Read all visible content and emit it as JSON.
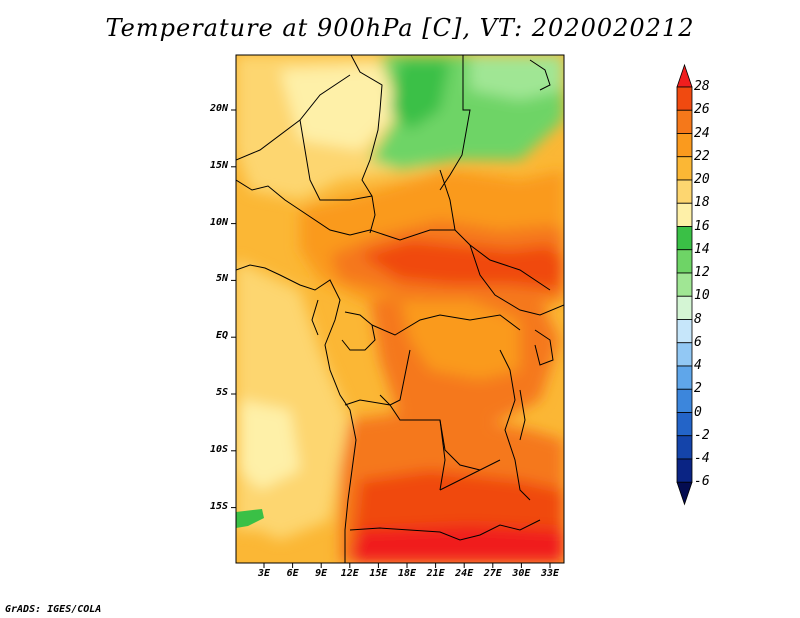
{
  "title": "Temperature at 900hPa [C], VT: 2020020212",
  "credit": "GrADS: IGES/COLA",
  "map": {
    "lat_ticks": [
      "20N",
      "15N",
      "10N",
      "5N",
      "EQ",
      "5S",
      "10S",
      "15S"
    ],
    "lon_ticks": [
      "3E",
      "6E",
      "9E",
      "12E",
      "15E",
      "18E",
      "21E",
      "24E",
      "27E",
      "30E",
      "33E"
    ]
  },
  "colorbar": {
    "labels": [
      "28",
      "26",
      "24",
      "22",
      "20",
      "18",
      "16",
      "14",
      "12",
      "10",
      "8",
      "6",
      "4",
      "2",
      "0",
      "-2",
      "-4",
      "-6"
    ],
    "colors": [
      "#f01e1e",
      "#f04a10",
      "#f5781a",
      "#fa9a1e",
      "#fbb735",
      "#fdd670",
      "#fef0a8",
      "#3ac046",
      "#6ed466",
      "#a0e694",
      "#d4f5d4",
      "#c6e6fa",
      "#92c8f4",
      "#5fa6ea",
      "#3c86dc",
      "#2364c8",
      "#1444aa",
      "#0a2484",
      "#040c50"
    ]
  }
}
